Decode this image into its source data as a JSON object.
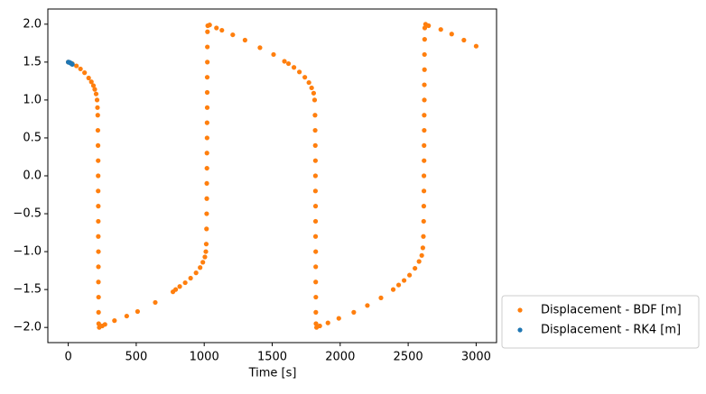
{
  "chart_data": {
    "type": "scatter",
    "xlabel": "Time [s]",
    "xlim": [
      -150,
      3150
    ],
    "ylim": [
      -2.2,
      2.2
    ],
    "xticks": [
      0,
      500,
      1000,
      1500,
      2000,
      2500,
      3000
    ],
    "yticks": [
      {
        "value": -2,
        "label": "−2.0"
      },
      {
        "value": -1.5,
        "label": "−1.5"
      },
      {
        "value": -1,
        "label": "−1.0"
      },
      {
        "value": -0.5,
        "label": "−0.5"
      },
      {
        "value": 0,
        "label": "0.0"
      },
      {
        "value": 0.5,
        "label": "0.5"
      },
      {
        "value": 1,
        "label": "1.0"
      },
      {
        "value": 1.5,
        "label": "1.5"
      },
      {
        "value": 2,
        "label": "2.0"
      }
    ],
    "legend": "outside lower right",
    "series": [
      {
        "name": "Displacement - BDF [m]",
        "color": "#ff7f0e",
        "x": [
          0,
          30,
          60,
          90,
          120,
          150,
          170,
          185,
          195,
          205,
          212,
          215,
          217,
          218,
          219,
          220,
          220,
          220,
          221,
          221,
          221,
          222,
          222,
          222,
          223,
          223,
          224,
          228,
          250,
          270,
          340,
          430,
          510,
          640,
          770,
          790,
          820,
          860,
          900,
          940,
          970,
          990,
          1005,
          1012,
          1015,
          1017,
          1018,
          1019,
          1019,
          1020,
          1020,
          1021,
          1021,
          1022,
          1022,
          1022,
          1023,
          1023,
          1024,
          1026,
          1040,
          1090,
          1130,
          1210,
          1300,
          1410,
          1510,
          1590,
          1620,
          1660,
          1700,
          1740,
          1770,
          1790,
          1805,
          1812,
          1815,
          1816,
          1817,
          1818,
          1818,
          1818,
          1819,
          1819,
          1819,
          1820,
          1820,
          1820,
          1821,
          1821,
          1822,
          1826,
          1850,
          1910,
          1990,
          2100,
          2200,
          2300,
          2390,
          2430,
          2470,
          2510,
          2550,
          2580,
          2600,
          2608,
          2612,
          2614,
          2615,
          2616,
          2616,
          2617,
          2617,
          2618,
          2618,
          2619,
          2619,
          2620,
          2620,
          2621,
          2622,
          2628,
          2650,
          2740,
          2820,
          2910,
          3000
        ],
        "values": [
          1.5,
          1.48,
          1.45,
          1.41,
          1.36,
          1.29,
          1.24,
          1.19,
          1.14,
          1.08,
          1.0,
          0.9,
          0.8,
          0.6,
          0.4,
          0.2,
          0,
          -0.2,
          -0.4,
          -0.6,
          -0.8,
          -1.0,
          -1.2,
          -1.4,
          -1.6,
          -1.8,
          -1.95,
          -2.0,
          -1.98,
          -1.96,
          -1.91,
          -1.85,
          -1.79,
          -1.67,
          -1.53,
          -1.5,
          -1.46,
          -1.41,
          -1.35,
          -1.28,
          -1.21,
          -1.14,
          -1.07,
          -1.0,
          -0.9,
          -0.7,
          -0.5,
          -0.3,
          -0.1,
          0.1,
          0.3,
          0.5,
          0.7,
          0.9,
          1.1,
          1.3,
          1.5,
          1.7,
          1.9,
          1.98,
          1.99,
          1.95,
          1.92,
          1.86,
          1.79,
          1.69,
          1.6,
          1.51,
          1.48,
          1.43,
          1.37,
          1.3,
          1.23,
          1.16,
          1.09,
          1.0,
          0.8,
          0.6,
          0.4,
          0.2,
          0,
          -0.2,
          -0.4,
          -0.6,
          -0.8,
          -1.0,
          -1.2,
          -1.4,
          -1.6,
          -1.8,
          -1.95,
          -2.0,
          -1.98,
          -1.94,
          -1.88,
          -1.8,
          -1.71,
          -1.61,
          -1.5,
          -1.44,
          -1.38,
          -1.31,
          -1.22,
          -1.13,
          -1.05,
          -0.95,
          -0.8,
          -0.6,
          -0.4,
          -0.2,
          0,
          0.2,
          0.4,
          0.6,
          0.8,
          1.0,
          1.2,
          1.4,
          1.6,
          1.8,
          1.95,
          2.0,
          1.98,
          1.93,
          1.87,
          1.79,
          1.71
        ]
      },
      {
        "name": "Displacement - RK4 [m]",
        "color": "#1f77b4",
        "x": [
          0,
          3,
          6,
          9,
          12,
          15,
          18,
          21,
          24,
          27,
          30
        ],
        "values": [
          1.5,
          1.499,
          1.497,
          1.495,
          1.493,
          1.49,
          1.487,
          1.483,
          1.479,
          1.475,
          1.47
        ]
      }
    ]
  }
}
